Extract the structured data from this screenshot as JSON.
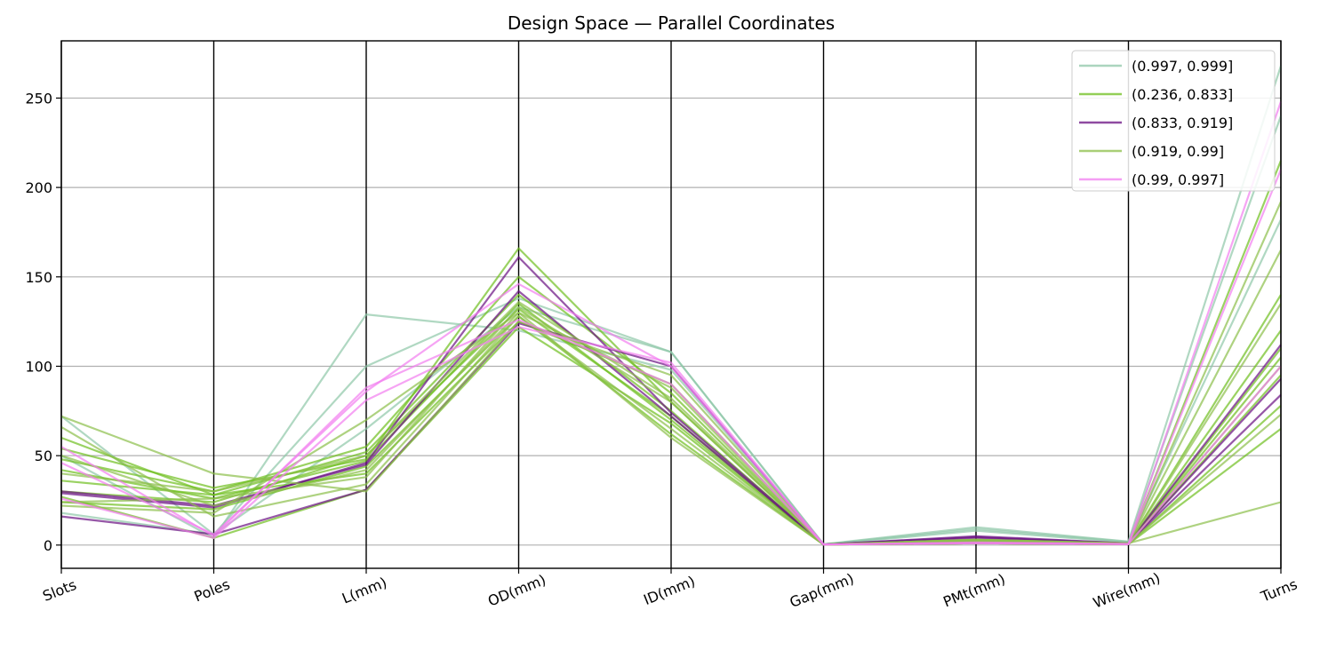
{
  "chart_data": {
    "type": "parallel_coordinates",
    "title": "Design Space — Parallel Coordinates",
    "axes": [
      "Slots",
      "Poles",
      "L(mm)",
      "OD(mm)",
      "ID(mm)",
      "Gap(mm)",
      "PMt(mm)",
      "Wire(mm)",
      "Turns"
    ],
    "yticks": [
      0,
      50,
      100,
      150,
      200,
      250
    ],
    "ylim": [
      -13,
      282
    ],
    "grid": true,
    "legend_position": "top-right",
    "series": [
      {
        "name": "(0.997, 0.999]",
        "color": "#8fc7a8",
        "lines": [
          [
            72,
            6,
            100,
            138,
            108,
            0.5,
            10,
            2,
            268
          ],
          [
            50,
            4,
            129,
            120,
            98,
            0.4,
            9,
            1.8,
            240
          ],
          [
            18,
            6,
            65,
            133,
            108,
            0.3,
            8,
            1.5,
            182
          ]
        ]
      },
      {
        "name": "(0.236, 0.833]",
        "color": "#6fbf1f",
        "lines": [
          [
            30,
            24,
            50,
            132,
            72,
            0.3,
            1,
            0.5,
            110
          ],
          [
            36,
            28,
            52,
            140,
            75,
            0.3,
            1,
            0.5,
            120
          ],
          [
            48,
            30,
            55,
            150,
            85,
            0.3,
            1.2,
            0.6,
            140
          ],
          [
            54,
            32,
            48,
            166,
            80,
            0.3,
            1.5,
            0.6,
            215
          ],
          [
            24,
            20,
            44,
            128,
            62,
            0.3,
            1,
            0.5,
            65
          ],
          [
            42,
            26,
            47,
            135,
            70,
            0.3,
            1,
            0.5,
            105
          ],
          [
            60,
            28,
            40,
            125,
            90,
            0.3,
            1.8,
            0.7,
            95
          ],
          [
            27,
            4,
            31,
            122,
            68,
            0.3,
            1,
            0.5,
            78
          ]
        ]
      },
      {
        "name": "(0.833, 0.919]",
        "color": "#6a0f82",
        "lines": [
          [
            30,
            22,
            45,
            142,
            72,
            0.3,
            4,
            0.8,
            93
          ],
          [
            29,
            21,
            46,
            161,
            74,
            0.3,
            4.5,
            0.9,
            112
          ],
          [
            16,
            6,
            31,
            124,
            100,
            0.3,
            5,
            1,
            84
          ]
        ]
      },
      {
        "name": "(0.919, 0.99]",
        "color": "#8cbf4a",
        "lines": [
          [
            72,
            40,
            30,
            125,
            95,
            0.3,
            3,
            1,
            24
          ],
          [
            50,
            22,
            42,
            130,
            88,
            0.3,
            3,
            0.8,
            165
          ],
          [
            22,
            18,
            70,
            130,
            60,
            0.3,
            2,
            0.6,
            192
          ],
          [
            40,
            30,
            50,
            136,
            82,
            0.3,
            2.5,
            0.7,
            100
          ],
          [
            66,
            16,
            34,
            128,
            65,
            0.3,
            3,
            0.9,
            73
          ],
          [
            24,
            26,
            38,
            133,
            80,
            0.3,
            2,
            0.6,
            135
          ]
        ]
      },
      {
        "name": "(0.99, 0.997]",
        "color": "#f27ef0",
        "lines": [
          [
            55,
            5,
            88,
            126,
            90,
            0.3,
            1,
            0.5,
            248
          ],
          [
            46,
            6,
            86,
            146,
            100,
            0.3,
            1,
            0.5,
            210
          ],
          [
            26,
            4,
            81,
            122,
            102,
            0.3,
            1.5,
            0.6,
            100
          ]
        ]
      }
    ]
  }
}
